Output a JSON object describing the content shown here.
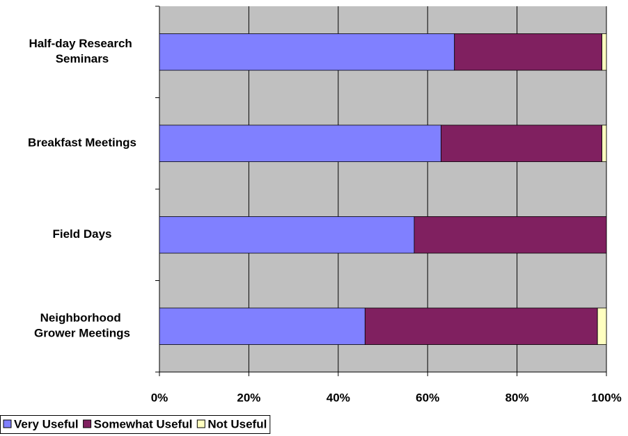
{
  "chart_data": {
    "type": "stacked-bar-horizontal",
    "categories": [
      "Half-day Research Seminars",
      "Breakfast Meetings",
      "Field Days",
      "Neighborhood Grower Meetings"
    ],
    "series": [
      {
        "name": "Very Useful",
        "color": "#8080ff",
        "values": [
          66,
          63,
          57,
          46
        ]
      },
      {
        "name": "Somewhat Useful",
        "color": "#802060",
        "values": [
          33,
          36,
          43,
          52
        ]
      },
      {
        "name": "Not Useful",
        "color": "#ffffc0",
        "values": [
          1,
          1,
          0,
          2
        ]
      }
    ],
    "xlim": [
      0,
      100
    ],
    "xticks": [
      {
        "value": 0,
        "label": "0%"
      },
      {
        "value": 20,
        "label": "20%"
      },
      {
        "value": 40,
        "label": "40%"
      },
      {
        "value": 60,
        "label": "60%"
      },
      {
        "value": 80,
        "label": "80%"
      },
      {
        "value": 100,
        "label": "100%"
      }
    ],
    "grid": true,
    "legend": "bottom-left"
  }
}
